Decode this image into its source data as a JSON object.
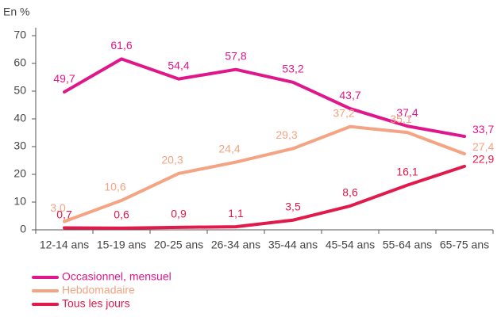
{
  "chart_data": {
    "type": "line",
    "y_axis_label": "En %",
    "categories": [
      "12-14 ans",
      "15-19 ans",
      "20-25 ans",
      "26-34 ans",
      "35-44 ans",
      "45-54 ans",
      "55-64 ans",
      "65-75 ans"
    ],
    "series": [
      {
        "name": "Occasionnel, mensuel",
        "color": "#e0178b",
        "values": [
          49.7,
          61.6,
          54.4,
          57.8,
          53.2,
          43.7,
          37.4,
          33.7
        ],
        "value_labels": [
          "49,7",
          "61,6",
          "54,4",
          "57,8",
          "53,2",
          "43,7",
          "37,4",
          "33,7"
        ]
      },
      {
        "name": "Hebdomadaire",
        "color": "#f4a383",
        "values": [
          3.0,
          10.6,
          20.3,
          24.4,
          29.3,
          37.2,
          35.1,
          27.4
        ],
        "value_labels": [
          "3,0",
          "10,6",
          "20,3",
          "24,4",
          "29,3",
          "37,2",
          "35,1",
          "27,4"
        ]
      },
      {
        "name": "Tous les jours",
        "color": "#e2194b",
        "values": [
          0.7,
          0.6,
          0.9,
          1.1,
          3.5,
          8.6,
          16.1,
          22.9
        ],
        "value_labels": [
          "0,7",
          "0,6",
          "0,9",
          "1,1",
          "3,5",
          "8,6",
          "16,1",
          "22,9"
        ]
      }
    ],
    "ylim": [
      0,
      70
    ],
    "yticks": [
      0,
      10,
      20,
      30,
      40,
      50,
      60,
      70
    ],
    "grid": false,
    "legend": "bottom-left"
  }
}
